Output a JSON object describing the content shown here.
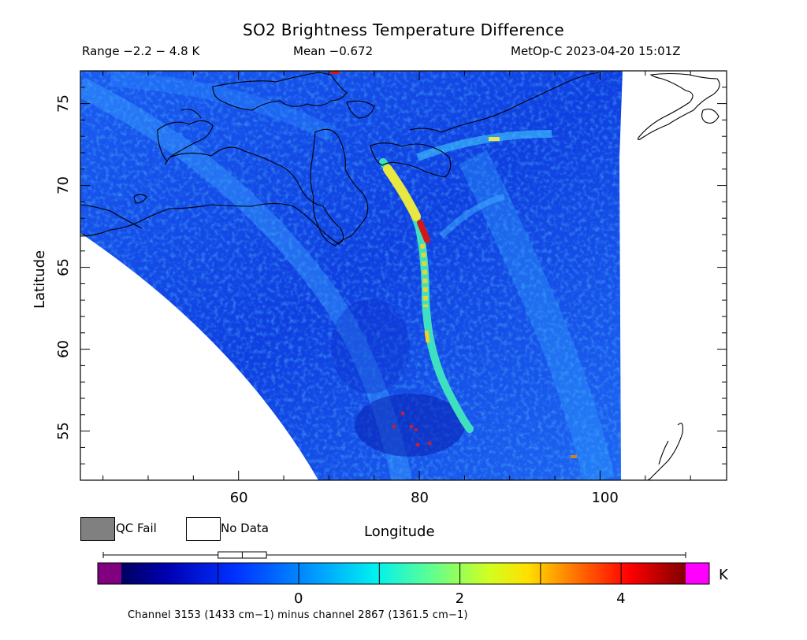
{
  "header": {
    "title": "SO2 Brightness Temperature Difference",
    "range": "Range −2.2 − 4.8 K",
    "mean": "Mean −0.672",
    "satellite": "MetOp-C 2023-04-20 15:01Z"
  },
  "axes": {
    "ylabel": "Latitude",
    "xlabel": "Longitude",
    "yticks": [
      "55",
      "60",
      "65",
      "70",
      "75"
    ],
    "xticks": [
      "60",
      "80",
      "100"
    ],
    "lon_range": [
      42.5,
      114
    ],
    "lat_range": [
      52,
      77
    ]
  },
  "legend": {
    "qc_fail": "QC Fail",
    "no_data": "No Data",
    "qc_color": "#808080",
    "nodata_color": "#ffffff"
  },
  "colorbar": {
    "ticks": [
      "0",
      "2",
      "4"
    ],
    "unit": "K",
    "min": -2.2,
    "max": 4.8,
    "under_color": "#800080",
    "over_color": "#ff00ff",
    "histogram_box": {
      "q1": -1.0,
      "median": -0.7,
      "q3": -0.4,
      "whisker_min": -2.2,
      "whisker_max": 4.8
    }
  },
  "footnote": "Channel 3153 (1433 cm−1) minus channel 2867 (1361.5 cm−1)"
}
